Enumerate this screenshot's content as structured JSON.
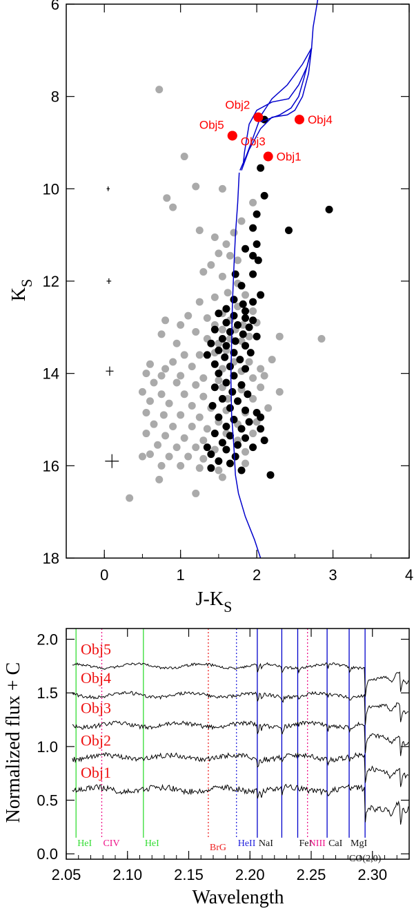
{
  "chart_data": [
    {
      "type": "scatter",
      "xlabel": "J-K",
      "xlabel_sub": "S",
      "ylabel": "K",
      "ylabel_sub": "S",
      "xlim": [
        -0.5,
        4
      ],
      "ylim": [
        18,
        6
      ],
      "x_ticks": [
        "0",
        "1",
        "2",
        "3",
        "4"
      ],
      "y_ticks": [
        "6",
        "8",
        "10",
        "12",
        "14",
        "16",
        "18"
      ],
      "colors": {
        "field": "#aaaaaa",
        "member": "#000000",
        "objects": "#ff0000",
        "isochrone": "#0000cc"
      },
      "labeled_objects": [
        {
          "name": "Obj1",
          "x": 2.15,
          "y": 9.3
        },
        {
          "name": "Obj2",
          "x": 2.02,
          "y": 8.45
        },
        {
          "name": "Obj3",
          "x": 1.68,
          "y": 8.85
        },
        {
          "name": "Obj4",
          "x": 2.56,
          "y": 8.5
        },
        {
          "name": "Obj5",
          "x": 1.68,
          "y": 8.85
        }
      ],
      "error_bars": [
        {
          "x": 0.05,
          "y": 10.0,
          "xerr": 0.02,
          "yerr": 0.05
        },
        {
          "x": 0.06,
          "y": 12.0,
          "xerr": 0.03,
          "yerr": 0.06
        },
        {
          "x": 0.07,
          "y": 13.95,
          "xerr": 0.05,
          "yerr": 0.1
        },
        {
          "x": 0.1,
          "y": 15.9,
          "xerr": 0.09,
          "yerr": 0.15
        }
      ],
      "member_stars": [
        [
          2.1,
          8.5
        ],
        [
          2.05,
          9.55
        ],
        [
          2.1,
          10.15
        ],
        [
          2.95,
          10.45
        ],
        [
          2.42,
          10.9
        ],
        [
          2.0,
          10.55
        ],
        [
          1.95,
          10.85
        ],
        [
          2.0,
          11.2
        ],
        [
          1.85,
          11.3
        ],
        [
          1.95,
          11.45
        ],
        [
          2.02,
          11.55
        ],
        [
          1.72,
          11.85
        ],
        [
          1.95,
          11.85
        ],
        [
          1.8,
          12.1
        ],
        [
          2.05,
          12.3
        ],
        [
          1.7,
          12.4
        ],
        [
          1.95,
          12.45
        ],
        [
          1.82,
          12.5
        ],
        [
          1.6,
          12.6
        ],
        [
          1.85,
          12.65
        ],
        [
          1.5,
          12.7
        ],
        [
          1.7,
          12.75
        ],
        [
          1.85,
          12.8
        ],
        [
          1.95,
          12.85
        ],
        [
          1.6,
          12.9
        ],
        [
          1.75,
          12.95
        ],
        [
          1.9,
          13.0
        ],
        [
          1.45,
          13.05
        ],
        [
          1.65,
          13.1
        ],
        [
          1.82,
          13.15
        ],
        [
          2.0,
          13.2
        ],
        [
          1.55,
          13.25
        ],
        [
          1.72,
          13.3
        ],
        [
          1.4,
          13.35
        ],
        [
          1.6,
          13.4
        ],
        [
          1.85,
          13.4
        ],
        [
          1.5,
          13.5
        ],
        [
          1.7,
          13.55
        ],
        [
          1.92,
          13.55
        ],
        [
          1.35,
          13.6
        ],
        [
          1.58,
          13.65
        ],
        [
          1.78,
          13.7
        ],
        [
          1.45,
          13.8
        ],
        [
          1.65,
          13.85
        ],
        [
          1.85,
          13.9
        ],
        [
          1.5,
          14.0
        ],
        [
          1.7,
          14.05
        ],
        [
          1.6,
          14.2
        ],
        [
          1.8,
          14.25
        ],
        [
          1.45,
          14.3
        ],
        [
          1.68,
          14.4
        ],
        [
          1.88,
          14.45
        ],
        [
          1.55,
          14.55
        ],
        [
          1.75,
          14.6
        ],
        [
          1.42,
          14.7
        ],
        [
          1.65,
          14.75
        ],
        [
          1.85,
          14.8
        ],
        [
          2.0,
          14.85
        ],
        [
          1.5,
          14.95
        ],
        [
          1.7,
          15.0
        ],
        [
          1.9,
          15.05
        ],
        [
          2.05,
          14.95
        ],
        [
          1.6,
          15.15
        ],
        [
          1.8,
          15.2
        ],
        [
          1.45,
          15.3
        ],
        [
          1.65,
          15.35
        ],
        [
          1.85,
          15.4
        ],
        [
          1.55,
          15.5
        ],
        [
          1.75,
          15.55
        ],
        [
          1.35,
          15.6
        ],
        [
          1.6,
          15.65
        ],
        [
          1.95,
          15.6
        ],
        [
          1.4,
          15.75
        ],
        [
          1.72,
          15.8
        ],
        [
          1.5,
          15.9
        ],
        [
          1.65,
          15.95
        ],
        [
          1.4,
          16.05
        ],
        [
          1.8,
          16.1
        ],
        [
          2.18,
          16.2
        ],
        [
          2.1,
          15.45
        ],
        [
          2.05,
          15.2
        ]
      ],
      "field_stars": [
        [
          0.72,
          7.85
        ],
        [
          1.05,
          9.3
        ],
        [
          1.2,
          9.95
        ],
        [
          0.82,
          10.2
        ],
        [
          0.9,
          10.4
        ],
        [
          1.55,
          10.0
        ],
        [
          1.95,
          10.3
        ],
        [
          1.8,
          10.7
        ],
        [
          1.7,
          10.95
        ],
        [
          1.25,
          10.9
        ],
        [
          1.45,
          11.05
        ],
        [
          1.6,
          11.2
        ],
        [
          1.5,
          11.4
        ],
        [
          1.65,
          11.45
        ],
        [
          1.75,
          11.55
        ],
        [
          1.4,
          11.65
        ],
        [
          1.3,
          11.8
        ],
        [
          1.55,
          11.9
        ],
        [
          1.75,
          12.05
        ],
        [
          1.62,
          12.25
        ],
        [
          1.45,
          12.35
        ],
        [
          1.85,
          12.3
        ],
        [
          1.25,
          12.45
        ],
        [
          1.95,
          12.65
        ],
        [
          1.75,
          12.55
        ],
        [
          1.55,
          12.7
        ],
        [
          1.35,
          12.8
        ],
        [
          1.1,
          12.75
        ],
        [
          0.8,
          12.85
        ],
        [
          1.0,
          12.95
        ],
        [
          1.45,
          12.95
        ],
        [
          1.65,
          12.85
        ],
        [
          1.82,
          12.95
        ],
        [
          2.0,
          12.9
        ],
        [
          0.75,
          13.15
        ],
        [
          1.2,
          13.1
        ],
        [
          1.55,
          13.05
        ],
        [
          1.72,
          13.05
        ],
        [
          1.9,
          13.2
        ],
        [
          2.3,
          13.2
        ],
        [
          2.85,
          13.25
        ],
        [
          1.35,
          13.25
        ],
        [
          1.65,
          13.25
        ],
        [
          0.95,
          13.35
        ],
        [
          1.5,
          13.35
        ],
        [
          1.8,
          13.3
        ],
        [
          1.6,
          13.5
        ],
        [
          1.45,
          13.55
        ],
        [
          1.25,
          13.6
        ],
        [
          1.05,
          13.6
        ],
        [
          0.9,
          13.75
        ],
        [
          1.7,
          13.75
        ],
        [
          1.9,
          13.75
        ],
        [
          2.2,
          13.7
        ],
        [
          0.6,
          13.8
        ],
        [
          0.8,
          13.9
        ],
        [
          1.15,
          13.85
        ],
        [
          1.55,
          13.9
        ],
        [
          1.8,
          13.95
        ],
        [
          2.05,
          13.9
        ],
        [
          0.55,
          14.0
        ],
        [
          0.75,
          14.05
        ],
        [
          1.0,
          14.05
        ],
        [
          1.3,
          14.1
        ],
        [
          1.5,
          14.15
        ],
        [
          1.95,
          14.1
        ],
        [
          2.1,
          14.05
        ],
        [
          0.65,
          14.2
        ],
        [
          0.95,
          14.2
        ],
        [
          1.2,
          14.25
        ],
        [
          1.55,
          14.3
        ],
        [
          1.8,
          14.35
        ],
        [
          2.05,
          14.3
        ],
        [
          2.3,
          14.4
        ],
        [
          0.5,
          14.4
        ],
        [
          0.75,
          14.45
        ],
        [
          1.05,
          14.45
        ],
        [
          1.3,
          14.5
        ],
        [
          1.62,
          14.55
        ],
        [
          1.95,
          14.55
        ],
        [
          0.6,
          14.6
        ],
        [
          0.85,
          14.65
        ],
        [
          1.15,
          14.7
        ],
        [
          1.4,
          14.75
        ],
        [
          1.6,
          14.8
        ],
        [
          1.85,
          14.85
        ],
        [
          2.15,
          14.75
        ],
        [
          0.55,
          14.85
        ],
        [
          0.78,
          14.9
        ],
        [
          1.0,
          14.9
        ],
        [
          1.25,
          14.95
        ],
        [
          1.5,
          15.05
        ],
        [
          1.75,
          15.1
        ],
        [
          2.0,
          15.05
        ],
        [
          0.65,
          15.1
        ],
        [
          0.9,
          15.15
        ],
        [
          1.15,
          15.15
        ],
        [
          1.35,
          15.2
        ],
        [
          1.6,
          15.3
        ],
        [
          1.95,
          15.3
        ],
        [
          0.55,
          15.3
        ],
        [
          0.8,
          15.35
        ],
        [
          1.05,
          15.4
        ],
        [
          1.3,
          15.45
        ],
        [
          1.55,
          15.5
        ],
        [
          1.75,
          15.45
        ],
        [
          0.7,
          15.55
        ],
        [
          0.95,
          15.6
        ],
        [
          1.2,
          15.6
        ],
        [
          1.45,
          15.65
        ],
        [
          1.85,
          15.7
        ],
        [
          0.6,
          15.75
        ],
        [
          0.85,
          15.8
        ],
        [
          1.1,
          15.8
        ],
        [
          1.3,
          15.85
        ],
        [
          0.5,
          15.8
        ],
        [
          0.75,
          16.0
        ],
        [
          1.0,
          16.0
        ],
        [
          1.25,
          16.05
        ],
        [
          1.5,
          16.1
        ],
        [
          0.72,
          16.3
        ],
        [
          1.55,
          16.25
        ],
        [
          1.85,
          15.95
        ],
        [
          0.33,
          16.7
        ],
        [
          1.2,
          16.6
        ]
      ],
      "isochrone": [
        [
          1.78,
          9.6
        ],
        [
          1.86,
          9.3
        ],
        [
          1.95,
          8.9
        ],
        [
          2.06,
          8.4
        ],
        [
          2.2,
          8.05
        ],
        [
          2.4,
          7.75
        ],
        [
          2.6,
          7.3
        ],
        [
          2.72,
          6.95
        ],
        [
          2.66,
          7.35
        ],
        [
          2.55,
          7.75
        ],
        [
          2.42,
          8.05
        ],
        [
          2.2,
          8.12
        ],
        [
          2.0,
          8.3
        ],
        [
          1.9,
          8.6
        ],
        [
          1.84,
          9.2
        ],
        [
          1.82,
          9.5
        ]
      ],
      "isochrone2": [
        [
          2.05,
          8.55
        ],
        [
          2.3,
          8.4
        ],
        [
          2.45,
          8.25
        ],
        [
          2.55,
          8.0
        ],
        [
          2.62,
          7.6
        ],
        [
          2.7,
          7.1
        ],
        [
          2.72,
          6.95
        ]
      ],
      "isochrone_main": [
        [
          1.77,
          9.65
        ],
        [
          1.75,
          10.3
        ],
        [
          1.72,
          11.0
        ],
        [
          1.7,
          11.7
        ],
        [
          1.68,
          12.5
        ],
        [
          1.67,
          13.3
        ],
        [
          1.66,
          14.1
        ],
        [
          1.67,
          14.9
        ],
        [
          1.7,
          15.6
        ],
        [
          1.72,
          16.2
        ],
        [
          1.76,
          16.6
        ],
        [
          1.85,
          17.1
        ],
        [
          1.97,
          17.6
        ],
        [
          2.05,
          18.0
        ]
      ],
      "isochrone_upper": [
        [
          1.8,
          9.6
        ],
        [
          1.9,
          9.15
        ],
        [
          2.05,
          8.7
        ],
        [
          2.2,
          8.45
        ],
        [
          2.4,
          8.4
        ],
        [
          2.5,
          8.3
        ],
        [
          2.6,
          8.0
        ],
        [
          2.68,
          7.5
        ],
        [
          2.72,
          6.95
        ],
        [
          2.74,
          6.5
        ],
        [
          2.78,
          6.1
        ],
        [
          2.83,
          5.6
        ]
      ]
    },
    {
      "type": "line",
      "xlabel": "Wavelength",
      "ylabel": "Normalized flux + C",
      "xlim": [
        2.05,
        2.33
      ],
      "ylim": [
        -0.05,
        2.1
      ],
      "x_ticks": [
        "2.05",
        "2.10",
        "2.15",
        "2.20",
        "2.25",
        "2.30"
      ],
      "y_ticks": [
        "0.0",
        "0.5",
        "1.0",
        "1.5",
        "2.0"
      ],
      "series": [
        {
          "name": "Obj5",
          "offset": 1.75
        },
        {
          "name": "Obj4",
          "offset": 1.48
        },
        {
          "name": "Obj3",
          "offset": 1.2
        },
        {
          "name": "Obj2",
          "offset": 0.9
        },
        {
          "name": "Obj1",
          "offset": 0.6
        }
      ],
      "line_markers": [
        {
          "label": "HeI",
          "x": 2.058,
          "color": "#33dd33",
          "style": "solid"
        },
        {
          "label": "CIV",
          "x": 2.079,
          "color": "#ee1188",
          "style": "dotted"
        },
        {
          "label": "HeI",
          "x": 2.113,
          "color": "#33dd33",
          "style": "solid"
        },
        {
          "label": "BrG",
          "x": 2.166,
          "color": "#ee2222",
          "style": "dotted"
        },
        {
          "label": "HeII",
          "x": 2.189,
          "color": "#2222dd",
          "style": "dotted"
        },
        {
          "label": "NaI",
          "x": 2.206,
          "color": "#0000cc",
          "style": "solid"
        },
        {
          "label": "",
          "x": 2.226,
          "color": "#0000cc",
          "style": "solid"
        },
        {
          "label": "FeI",
          "x": 2.239,
          "color": "#0000cc",
          "style": "solid"
        },
        {
          "label": "NIII",
          "x": 2.247,
          "color": "#ee1188",
          "style": "dotted"
        },
        {
          "label": "CaI",
          "x": 2.263,
          "color": "#0000cc",
          "style": "solid"
        },
        {
          "label": "MgI",
          "x": 2.281,
          "color": "#0000cc",
          "style": "solid"
        },
        {
          "label": "CO(2,0)",
          "x": 2.294,
          "color": "#0000cc",
          "style": "solid"
        }
      ]
    }
  ]
}
